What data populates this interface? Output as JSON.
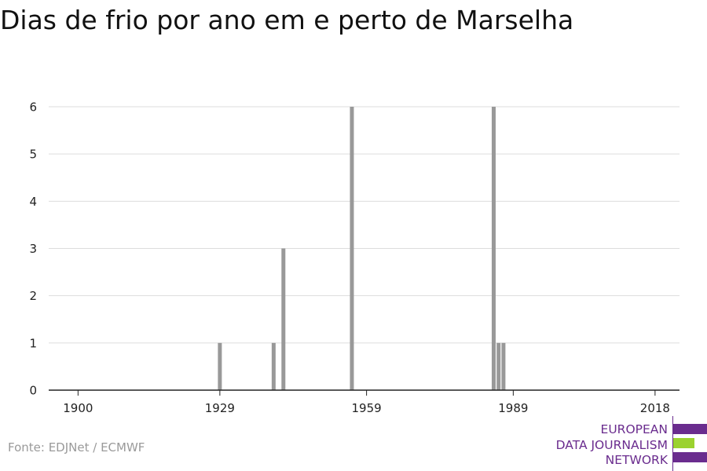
{
  "chart_data": {
    "type": "bar",
    "title": "Dias de frio por ano em e perto de Marselha",
    "xlabel": "",
    "ylabel": "",
    "xlim": [
      1894,
      2023
    ],
    "ylim": [
      0,
      6
    ],
    "yticks": [
      0,
      1,
      2,
      3,
      4,
      5,
      6
    ],
    "xticks": [
      1900,
      1929,
      1959,
      1989,
      2018
    ],
    "grid": true,
    "bar_color": "#999999",
    "x": [
      1929,
      1940,
      1942,
      1956,
      1985,
      1986,
      1987
    ],
    "values": [
      1,
      1,
      3,
      6,
      6,
      1,
      1
    ]
  },
  "source": "Fonte: EDJNet / ECMWF",
  "logo": {
    "lines": [
      "EUROPEAN",
      "DATA JOURNALISM",
      "NETWORK"
    ],
    "purple": "#6a2c8e",
    "green": "#9bd22f"
  }
}
